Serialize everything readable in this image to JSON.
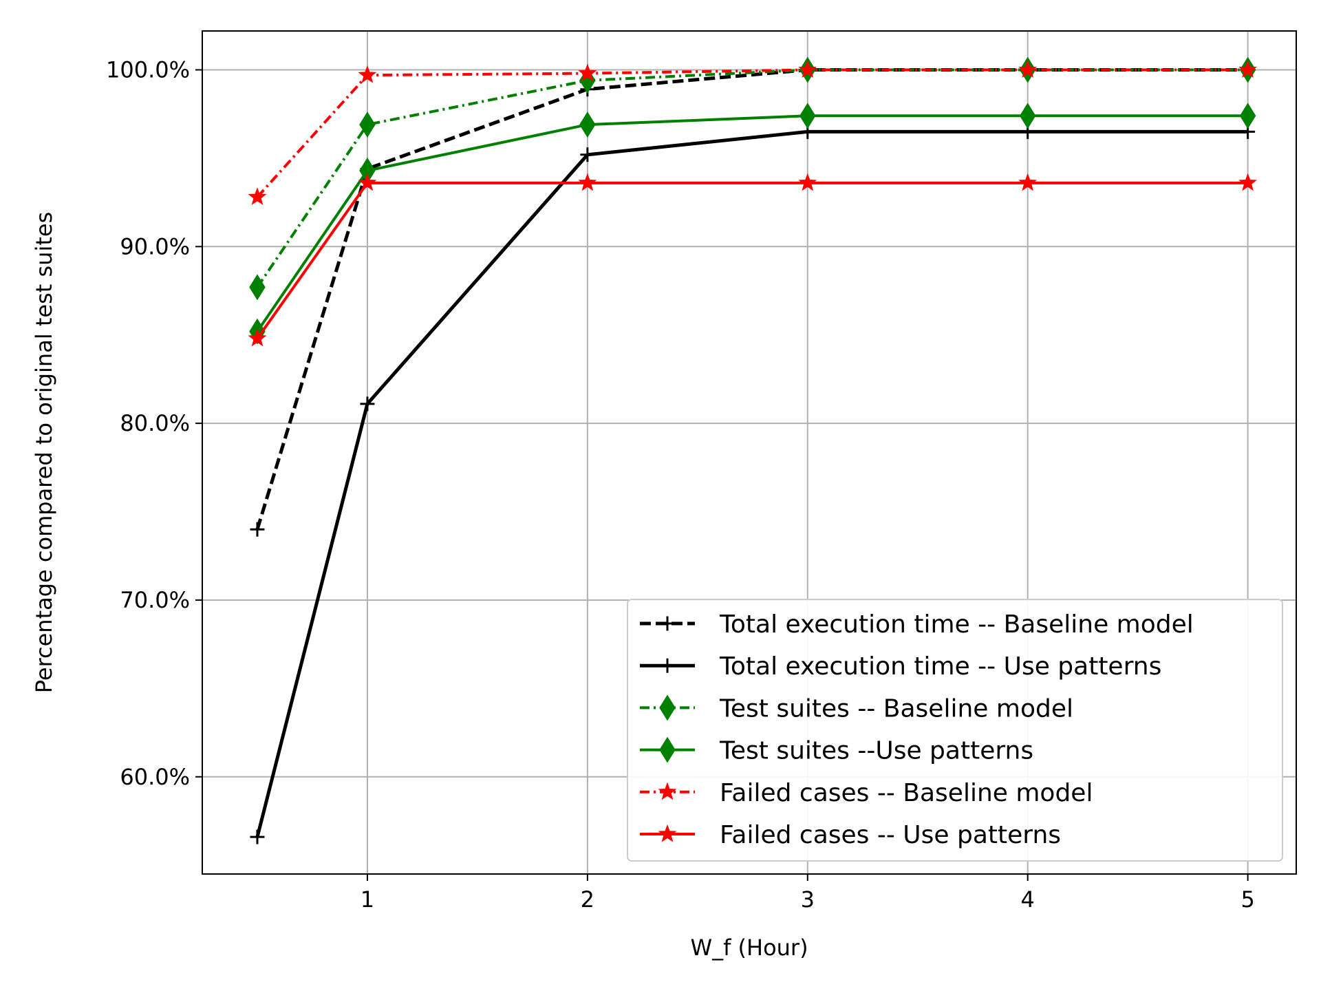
{
  "chart_data": {
    "type": "line",
    "title": "",
    "xlabel": "W_f (Hour)",
    "ylabel": "Percentage compared to original test suites",
    "xlim": [
      0.25,
      5.22
    ],
    "ylim": [
      54.5,
      102.2
    ],
    "x": [
      0.5,
      1,
      2,
      3,
      4,
      5
    ],
    "x_ticks": [
      1,
      2,
      3,
      4,
      5
    ],
    "x_tick_labels": [
      "1",
      "2",
      "3",
      "4",
      "5"
    ],
    "y_ticks": [
      60,
      70,
      80,
      90,
      100
    ],
    "y_tick_labels": [
      "60.0%",
      "70.0%",
      "80.0%",
      "90.0%",
      "100.0%"
    ],
    "grid": true,
    "legend_position": "lower-right",
    "series": [
      {
        "name": "Total execution time -- Baseline model",
        "values": [
          74.0,
          94.4,
          98.9,
          100.0,
          100.0,
          100.0
        ],
        "color": "#000000",
        "linestyle": "dashed",
        "marker": "plus"
      },
      {
        "name": "Total execution time -- Use patterns",
        "values": [
          56.6,
          81.1,
          95.2,
          96.5,
          96.5,
          96.5
        ],
        "color": "#000000",
        "linestyle": "solid",
        "marker": "plus"
      },
      {
        "name": "Test suites -- Baseline model",
        "values": [
          87.7,
          96.9,
          99.4,
          100.0,
          100.0,
          100.0
        ],
        "color": "#008000",
        "linestyle": "dashdot",
        "marker": "diamond"
      },
      {
        "name": "Test suites --Use patterns",
        "values": [
          85.2,
          94.3,
          96.9,
          97.4,
          97.4,
          97.4
        ],
        "color": "#008000",
        "linestyle": "solid",
        "marker": "diamond"
      },
      {
        "name": "Failed cases -- Baseline model",
        "values": [
          92.8,
          99.7,
          99.8,
          100.0,
          100.0,
          100.0
        ],
        "color": "#ff0000",
        "linestyle": "dashdot",
        "marker": "star"
      },
      {
        "name": "Failed cases -- Use patterns",
        "values": [
          84.8,
          93.6,
          93.6,
          93.6,
          93.6,
          93.6
        ],
        "color": "#ff0000",
        "linestyle": "solid",
        "marker": "star"
      }
    ]
  }
}
